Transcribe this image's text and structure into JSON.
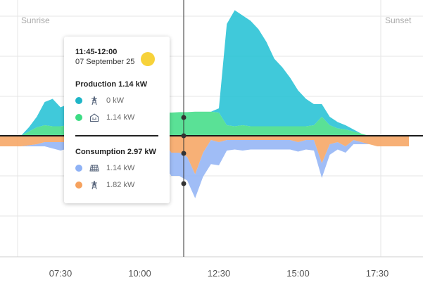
{
  "chart_data": {
    "type": "area",
    "x": [
      "05:00",
      "05:15",
      "05:30",
      "05:45",
      "06:00",
      "06:15",
      "06:30",
      "06:45",
      "07:00",
      "07:15",
      "07:30",
      "07:45",
      "08:00",
      "08:15",
      "08:30",
      "08:45",
      "09:00",
      "09:15",
      "09:30",
      "09:45",
      "10:00",
      "10:15",
      "10:30",
      "10:45",
      "11:00",
      "11:15",
      "11:30",
      "11:45",
      "12:00",
      "12:15",
      "12:30",
      "12:45",
      "13:00",
      "13:15",
      "13:30",
      "13:45",
      "14:00",
      "14:15",
      "14:30",
      "14:45",
      "15:00",
      "15:15",
      "15:30",
      "15:45",
      "16:00",
      "16:15",
      "16:30",
      "16:45",
      "17:00",
      "17:15",
      "17:30",
      "17:45",
      "18:00",
      "18:15",
      "18:30"
    ],
    "x_ticks": [
      "07:30",
      "10:00",
      "12:30",
      "15:00",
      "17:30"
    ],
    "sunrise_label": "Sunrise",
    "sunset_label": "Sunset",
    "series": [
      {
        "name": "Production grid",
        "role": "production",
        "color": "#1fc0d4",
        "values": [
          0,
          0,
          0,
          0,
          0,
          0,
          0.2,
          0.5,
          1.1,
          1.3,
          0.9,
          1.0,
          1.6,
          1.3,
          0.9,
          0.7,
          0.7,
          0.5,
          0.3,
          0.2,
          0.1,
          0.05,
          0,
          0,
          0,
          0,
          0,
          0,
          0,
          0,
          0.2,
          4.8,
          5.5,
          5.2,
          5.0,
          4.6,
          4.0,
          3.2,
          2.8,
          2.3,
          1.7,
          1.3,
          1.0,
          0.6,
          0.4,
          0.3,
          0.2,
          0.1,
          0,
          0,
          0,
          0,
          0,
          0,
          0
        ]
      },
      {
        "name": "Production solar",
        "role": "production",
        "color": "#3ddc84",
        "values": [
          0,
          0,
          0,
          0,
          0,
          0,
          0.2,
          0.4,
          0.5,
          0.45,
          0.45,
          0.5,
          0.55,
          0.5,
          0.55,
          0.7,
          0.75,
          0.8,
          0.85,
          0.9,
          0.95,
          1.0,
          1.05,
          1.1,
          1.1,
          1.12,
          1.12,
          1.14,
          1.14,
          1.14,
          1.1,
          0.5,
          0.45,
          0.5,
          0.45,
          0.45,
          0.45,
          0.45,
          0.45,
          0.45,
          0.45,
          0.45,
          0.5,
          0.9,
          0.5,
          0.35,
          0.3,
          0.2,
          0.1,
          0,
          0,
          0,
          0,
          0,
          0
        ]
      },
      {
        "name": "Consumption solar",
        "role": "consumption",
        "color": "#8fb2f5",
        "values": [
          0,
          0,
          0,
          0,
          0,
          0,
          0.05,
          0.1,
          0.2,
          0.3,
          0.4,
          0.3,
          0.4,
          0.3,
          0.4,
          0.6,
          0.7,
          0.8,
          0.8,
          0.9,
          1.0,
          1.0,
          1.05,
          1.1,
          1.1,
          1.1,
          1.12,
          1.14,
          1.14,
          1.14,
          1.1,
          0.5,
          0.45,
          0.5,
          0.45,
          0.45,
          0.45,
          0.45,
          0.45,
          0.45,
          0.45,
          0.45,
          0.5,
          0.7,
          0.5,
          0.35,
          0.3,
          0.2,
          0.1,
          0,
          0,
          0,
          0,
          0,
          0
        ]
      },
      {
        "name": "Consumption grid",
        "role": "consumption",
        "color": "#f6a25e",
        "values": [
          0.5,
          0.5,
          0.5,
          0.5,
          0.5,
          0.5,
          0.45,
          0.4,
          0.3,
          0.3,
          0.3,
          0.3,
          0.3,
          0.2,
          0.2,
          0.2,
          0.2,
          0.2,
          0.2,
          0.2,
          0.2,
          0.3,
          0.2,
          0.3,
          0.8,
          0.8,
          1.0,
          1.82,
          0.8,
          0.2,
          0.3,
          0.2,
          0.2,
          0.2,
          0.2,
          0.2,
          0.2,
          0.2,
          0.2,
          0.2,
          0.3,
          0.2,
          0.2,
          1.3,
          0.4,
          0.3,
          0.5,
          0.2,
          0.3,
          0.4,
          0.5,
          0.5,
          0.5,
          0.5,
          0.5
        ]
      }
    ],
    "grid": true,
    "cursor_x": "11:45"
  },
  "tooltip": {
    "time": "11:45-12:00",
    "date": "07 September 25",
    "sun_color": "#f7d23a",
    "production": {
      "title": "Production 1.14 kW",
      "items": [
        {
          "icon": "power-tower-icon",
          "color": "#1fb5c7",
          "value": "0 kW"
        },
        {
          "icon": "house-battery-icon",
          "color": "#3ddc84",
          "value": "1.14 kW"
        }
      ]
    },
    "consumption": {
      "title": "Consumption 2.97 kW",
      "items": [
        {
          "icon": "solar-panel-icon",
          "color": "#8fb2f5",
          "value": "1.14 kW"
        },
        {
          "icon": "power-tower-icon",
          "color": "#f6a25e",
          "value": "1.82 kW"
        }
      ]
    }
  }
}
